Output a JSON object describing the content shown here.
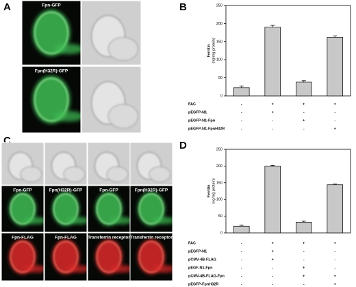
{
  "panels": {
    "A": {
      "letter": "A",
      "labels": [
        "Fpn-GFP",
        "Fpn(H32R)-GFP"
      ]
    },
    "B": {
      "letter": "B"
    },
    "C": {
      "letter": "C",
      "labels": [
        [
          "Fpn-GFP",
          "Fpn(H32R)-GFP",
          "Fpn-GFP",
          "Fpn(H32R)-GFP"
        ],
        [
          "Fpn-FLAG",
          "Fpn-FLAG",
          "Transferrin receptor",
          "Transferrin receptor"
        ]
      ]
    },
    "D": {
      "letter": "D"
    }
  },
  "chart_data": [
    {
      "type": "bar",
      "ylabel": "Ferritin",
      "ylabel_unit": "(ng/mg protein)",
      "values": [
        23,
        190,
        38,
        162
      ],
      "errors": [
        4,
        5,
        4,
        4
      ],
      "color": "#c8c8c8",
      "ylim": [
        0,
        250
      ],
      "yticks": [
        0,
        50,
        100,
        150,
        200,
        250
      ],
      "conditions": [
        {
          "name": "FAC",
          "marks": [
            "-",
            "+",
            "+",
            "+"
          ]
        },
        {
          "name": "pEGFP-N1",
          "marks": [
            "-",
            "+",
            "-",
            "-"
          ]
        },
        {
          "name": "pEGFP-N1-Fpn",
          "marks": [
            "-",
            "-",
            "+",
            "-"
          ]
        },
        {
          "name": "pEGFP-N1-FpnH32R",
          "marks": [
            "-",
            "-",
            "-",
            "+"
          ]
        }
      ]
    },
    {
      "type": "bar",
      "ylabel": "Ferritin",
      "ylabel_unit": "(ng/mg protein)",
      "values": [
        20,
        200,
        32,
        144
      ],
      "errors": [
        3,
        2,
        3,
        2
      ],
      "color": "#c8c8c8",
      "ylim": [
        0,
        250
      ],
      "yticks": [
        0,
        50,
        100,
        150,
        200,
        250
      ],
      "conditions": [
        {
          "name": "FAC",
          "marks": [
            "-",
            "+",
            "+",
            "+"
          ]
        },
        {
          "name": "pEGFP-N1",
          "marks": [
            "-",
            "+",
            "-",
            "-"
          ]
        },
        {
          "name": "pCMV-4B-FLAG",
          "marks": [
            "-",
            "+",
            "-",
            "-"
          ]
        },
        {
          "name": "pEGF-N1-Fpn",
          "marks": [
            "-",
            "-",
            "+",
            "-"
          ]
        },
        {
          "name": "pCMV-4B-FLAG-Fpn",
          "marks": [
            "-",
            "-",
            "+",
            "+"
          ]
        },
        {
          "name": "pEGFP-FpnH32R",
          "marks": [
            "-",
            "-",
            "-",
            "+"
          ]
        }
      ]
    }
  ]
}
